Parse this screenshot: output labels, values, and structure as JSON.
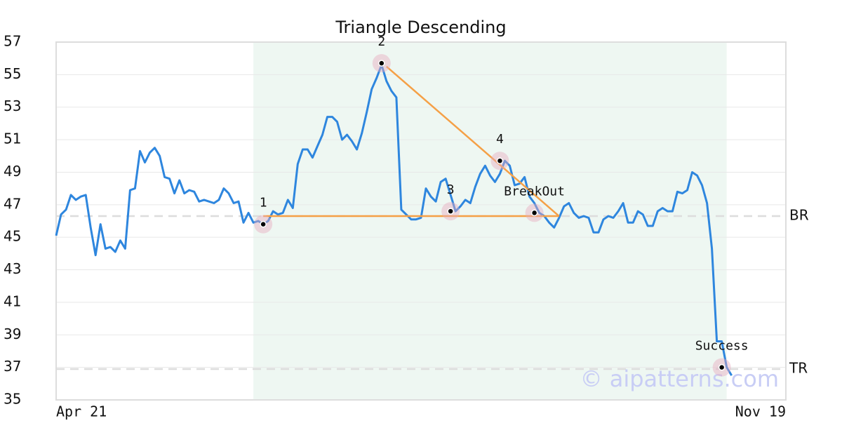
{
  "chart_data": {
    "type": "line",
    "title": "Triangle Descending",
    "categories": [
      "Apr 21",
      null,
      null,
      null,
      null,
      null,
      null,
      null,
      null,
      null,
      null,
      null,
      null,
      null,
      null,
      null,
      null,
      null,
      null,
      null,
      null,
      null,
      null,
      null,
      null,
      null,
      null,
      null,
      null,
      null,
      null,
      null,
      null,
      null,
      null,
      null,
      null,
      null,
      null,
      null,
      null,
      null,
      null,
      null,
      null,
      null,
      null,
      null,
      null,
      null,
      null,
      null,
      null,
      null,
      null,
      null,
      null,
      null,
      null,
      null,
      null,
      null,
      null,
      null,
      null,
      null,
      null,
      null,
      null,
      null,
      null,
      null,
      null,
      null,
      null,
      null,
      null,
      null,
      null,
      null,
      null,
      null,
      null,
      null,
      null,
      null,
      null,
      null,
      null,
      null,
      null,
      null,
      null,
      null,
      null,
      null,
      null,
      null,
      null,
      null,
      null,
      null,
      null,
      null,
      null,
      null,
      null,
      null,
      null,
      null,
      null,
      null,
      null,
      null,
      null,
      null,
      null,
      null,
      null,
      null,
      null,
      null,
      null,
      null,
      null,
      null,
      null,
      null,
      null,
      null,
      null,
      null,
      null,
      null,
      null,
      null,
      null,
      null,
      null,
      null,
      null,
      null,
      null,
      null,
      null,
      null,
      null,
      null,
      "Nov 19"
    ],
    "color": "#2e86de",
    "values": [
      45.1,
      46.4,
      46.7,
      47.6,
      47.3,
      47.5,
      47.6,
      45.6,
      43.9,
      45.8,
      44.3,
      44.4,
      44.1,
      44.8,
      44.3,
      47.9,
      48.0,
      50.3,
      49.6,
      50.2,
      50.5,
      50.0,
      48.7,
      48.6,
      47.7,
      48.5,
      47.7,
      47.9,
      47.8,
      47.2,
      47.3,
      47.2,
      47.1,
      47.3,
      48.0,
      47.7,
      47.1,
      47.2,
      45.9,
      46.5,
      45.9,
      46.0,
      45.8,
      46.0,
      46.6,
      46.4,
      46.5,
      47.3,
      46.8,
      49.5,
      50.4,
      50.4,
      49.9,
      50.6,
      51.3,
      52.4,
      52.4,
      52.1,
      51.0,
      51.3,
      50.9,
      50.4,
      51.4,
      52.7,
      54.1,
      54.8,
      55.6,
      54.6,
      54.0,
      53.6,
      46.7,
      46.4,
      46.1,
      46.1,
      46.2,
      48.0,
      47.5,
      47.2,
      48.4,
      48.6,
      47.6,
      46.6,
      46.9,
      47.3,
      47.1,
      48.1,
      48.9,
      49.4,
      48.8,
      48.4,
      48.9,
      49.7,
      49.4,
      48.2,
      48.3,
      48.7,
      47.5,
      47.1,
      46.5,
      46.3,
      45.9,
      45.6,
      46.2,
      46.9,
      47.1,
      46.5,
      46.2,
      46.3,
      46.2,
      45.3,
      45.3,
      46.1,
      46.3,
      46.2,
      46.6,
      47.1,
      45.9,
      45.9,
      46.6,
      46.4,
      45.7,
      45.7,
      46.6,
      46.8,
      46.6,
      46.6,
      47.8,
      47.7,
      47.9,
      49.0,
      48.8,
      48.2,
      47.1,
      44.3,
      38.6,
      38.6,
      37.0,
      36.5,
      null,
      null,
      null,
      null,
      null,
      null,
      null,
      null,
      null,
      null,
      null
    ],
    "ylim": [
      35,
      57
    ],
    "yticks": [
      35,
      37,
      39,
      41,
      43,
      45,
      47,
      49,
      51,
      53,
      55,
      57
    ],
    "grid": true,
    "watermark": "© aipatterns.com",
    "pattern": {
      "shade": [
        40,
        136
      ],
      "color": "#f5a046",
      "points": [
        {
          "label": "1",
          "x": 42,
          "y": 45.8
        },
        {
          "label": "2",
          "x": 66,
          "y": 55.7
        },
        {
          "label": "3",
          "x": 80,
          "y": 46.6
        },
        {
          "label": "4",
          "x": 90,
          "y": 49.7
        },
        {
          "label": "BreakOut",
          "x": 97,
          "y": 46.5
        },
        {
          "label": "Success",
          "x": 135,
          "y": 37.0
        }
      ],
      "lines": [
        {
          "x": [
            42,
            102
          ],
          "y": [
            46.3,
            46.3
          ]
        },
        {
          "x": [
            67,
            102
          ],
          "y": [
            55.5,
            46.3
          ]
        }
      ],
      "levels": [
        {
          "label": "BR",
          "value": 46.3
        },
        {
          "label": "TR",
          "value": 36.9
        }
      ]
    }
  }
}
